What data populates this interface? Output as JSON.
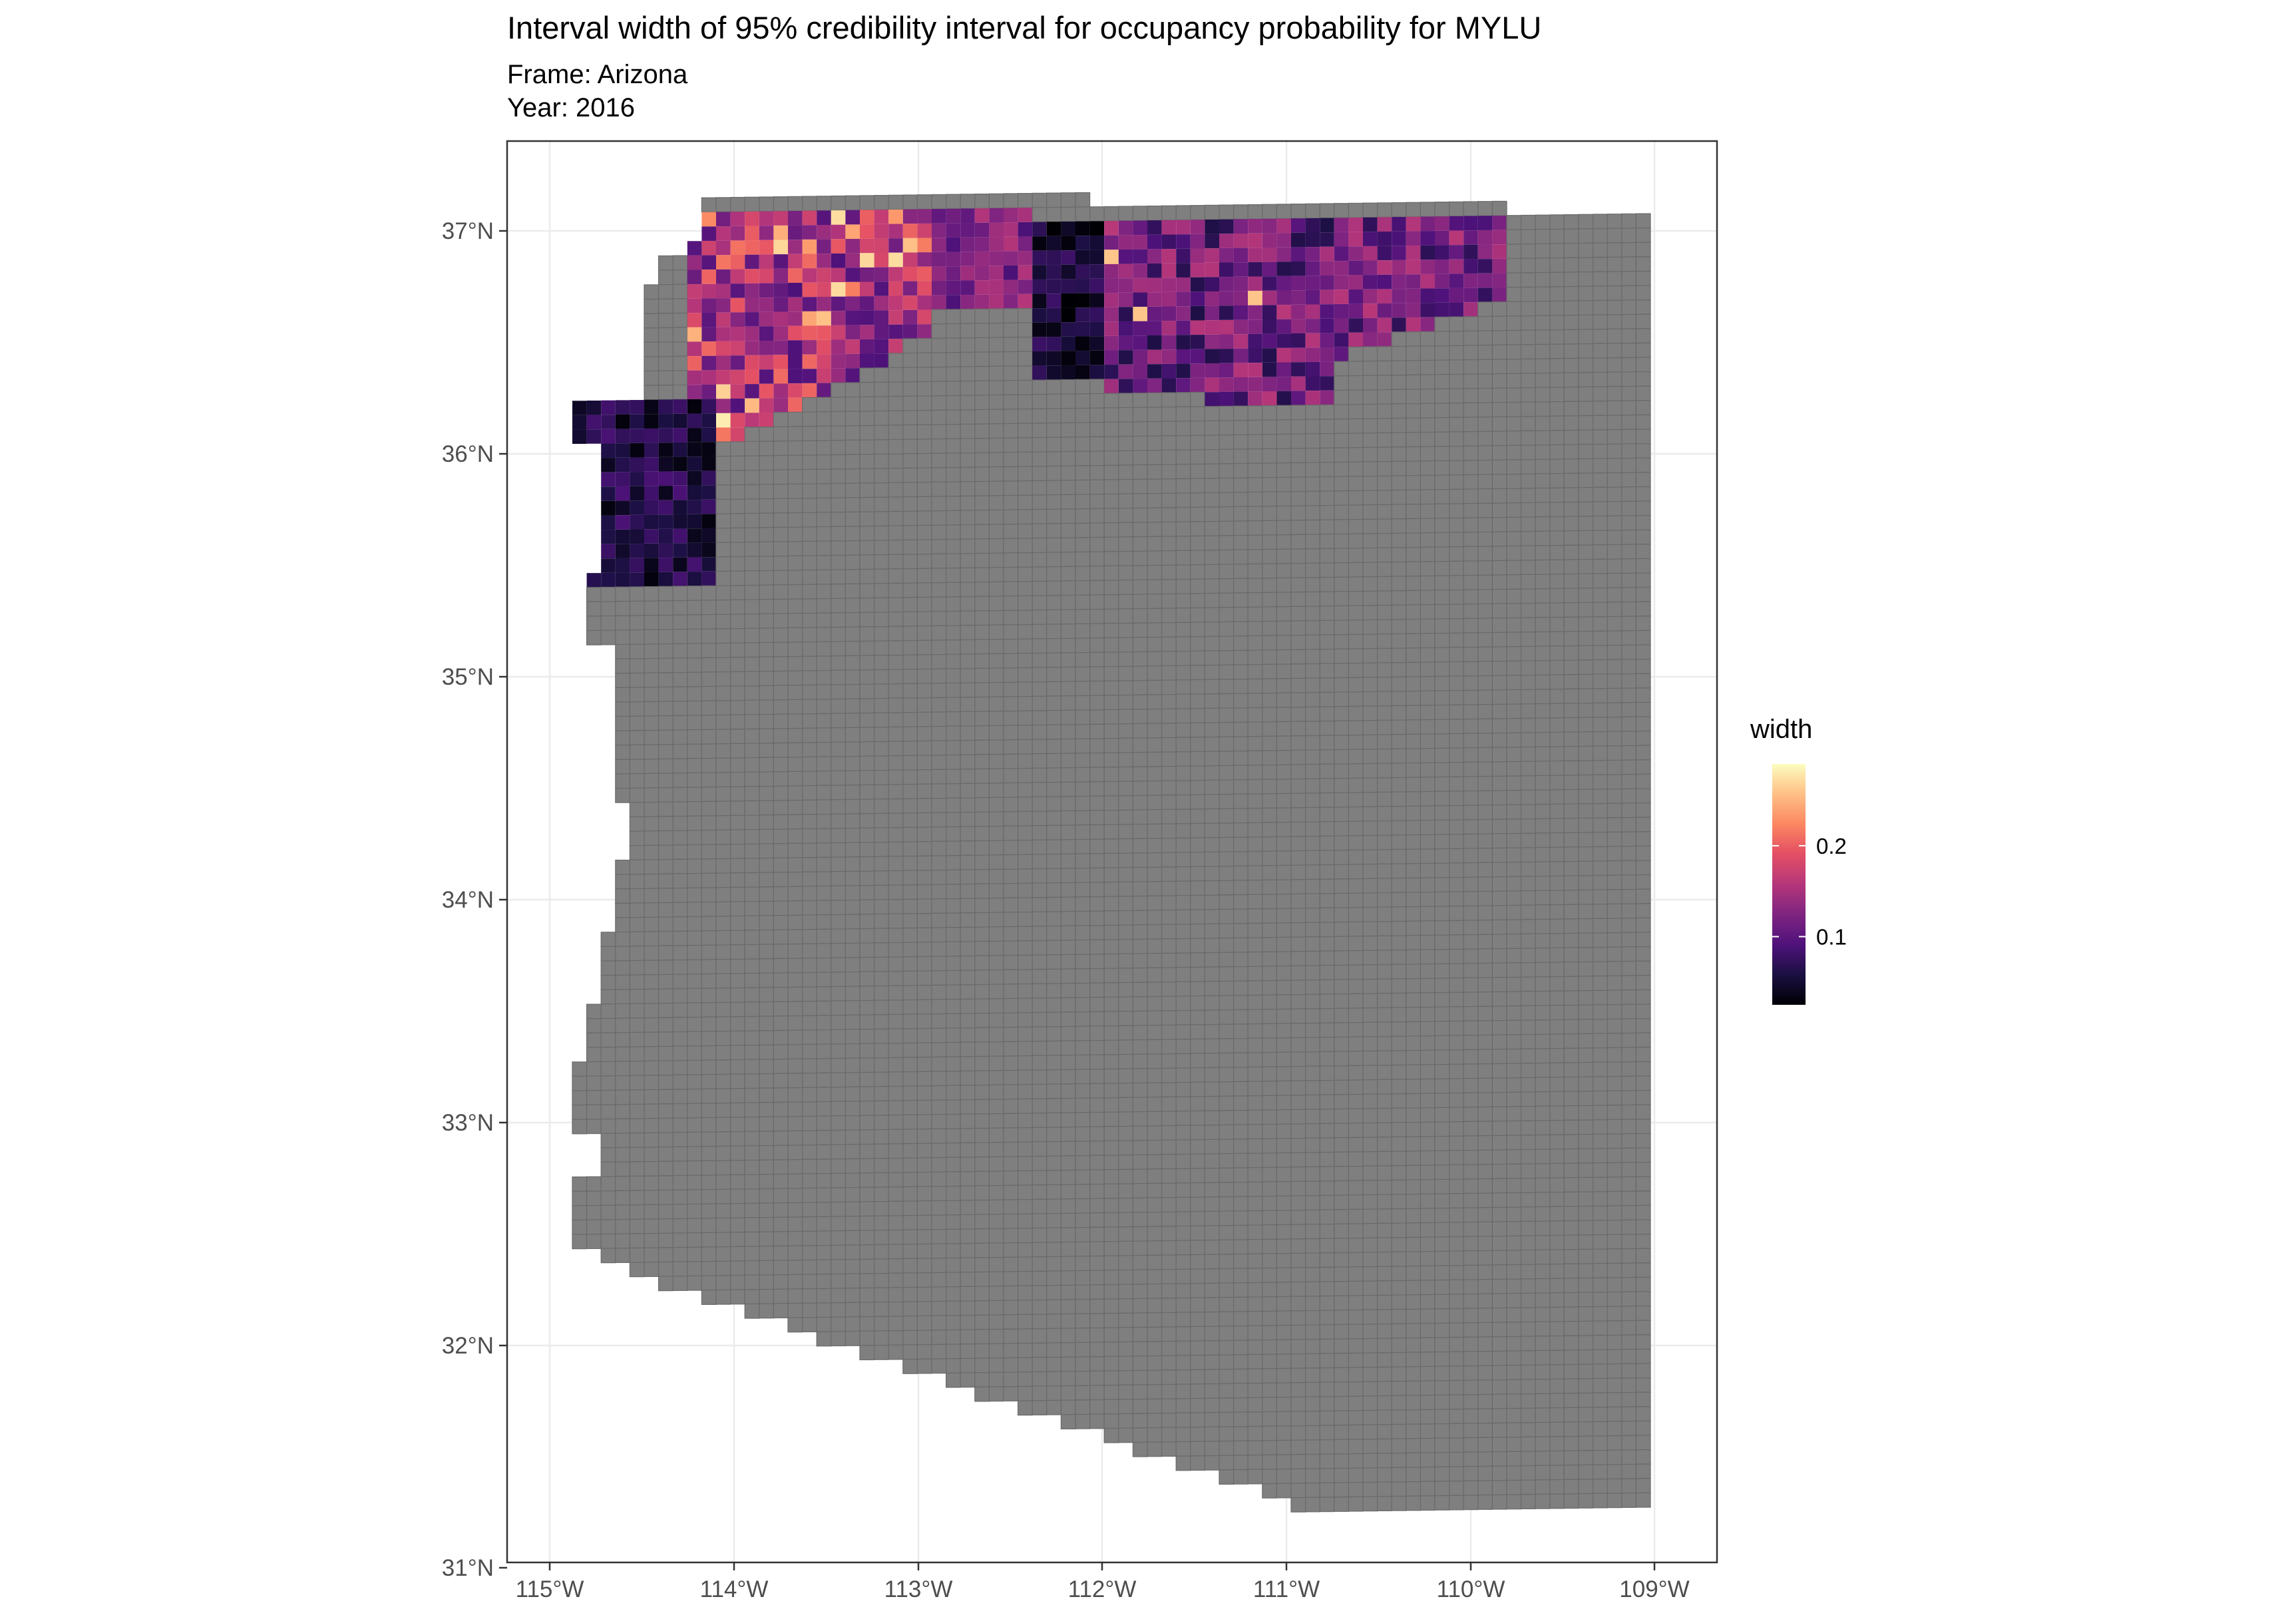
{
  "title": "Interval width of 95% credibility interval for occupancy probability for MYLU",
  "subtitle_frame": "Frame: Arizona",
  "subtitle_year": "Year: 2016",
  "axes": {
    "x_ticks": [
      "115°W",
      "114°W",
      "113°W",
      "112°W",
      "111°W",
      "110°W",
      "109°W"
    ],
    "y_ticks": [
      "37°N",
      "36°N",
      "35°N",
      "34°N",
      "33°N",
      "32°N",
      "31°N"
    ],
    "lon_range": [
      -115.2,
      -108.6
    ],
    "lat_range": [
      30.9,
      37.4
    ],
    "grid": true
  },
  "legend": {
    "title": "width",
    "labels": [
      "0.2",
      "0.1"
    ],
    "label_values": [
      0.2,
      0.1
    ],
    "range": [
      0.025,
      0.29
    ],
    "colormap": "magma",
    "position": "right"
  },
  "colors": {
    "no_data_cell": "#7f7f7f",
    "cell_border": "#6a6a6a",
    "panel_border": "#333333",
    "grid_line": "#ebebeb",
    "axis_text": "#4d4d4d"
  }
}
